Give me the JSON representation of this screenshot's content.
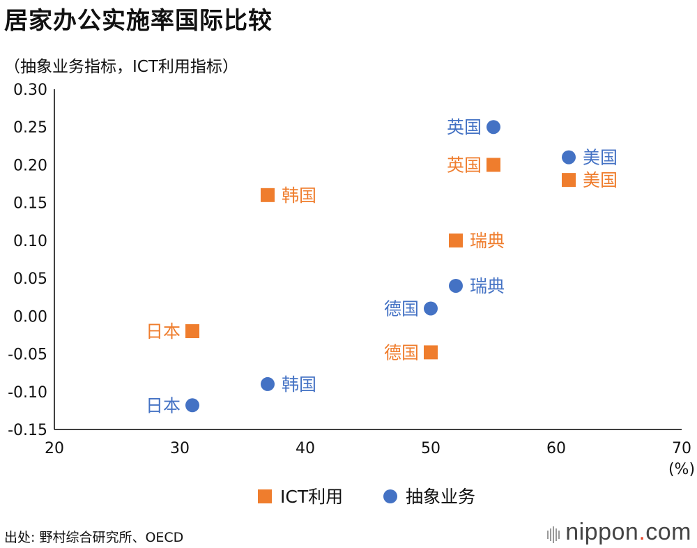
{
  "title": "居家办公实施率国际比较",
  "subtitle": "（抽象业务指标，ICT利用指标）",
  "source": "出处: 野村综合研究所、OECD",
  "logo": {
    "brand": "nippon",
    "dot": ".",
    "tld": "com"
  },
  "colors": {
    "ict": "#ef7d2d",
    "abstract": "#4472c4",
    "axis": "#000000"
  },
  "chart_data": {
    "type": "scatter",
    "xlim": [
      20,
      70
    ],
    "ylim": [
      -0.15,
      0.3
    ],
    "x_ticks": [
      "20",
      "30",
      "40",
      "50",
      "60",
      "70"
    ],
    "y_ticks": [
      "0.30",
      "0.25",
      "0.20",
      "0.15",
      "0.10",
      "0.05",
      "0.00",
      "-0.05",
      "-0.10",
      "-0.15"
    ],
    "x_unit": "(%)",
    "grid": false,
    "legend_position": "bottom",
    "series": [
      {
        "name": "ICT利用",
        "marker": "square",
        "color": "#ef7d2d",
        "points": [
          {
            "label": "日本",
            "x": 31,
            "y": -0.02,
            "label_side": "left"
          },
          {
            "label": "韩国",
            "x": 37,
            "y": 0.16,
            "label_side": "right"
          },
          {
            "label": "德国",
            "x": 50,
            "y": -0.048,
            "label_side": "left"
          },
          {
            "label": "瑞典",
            "x": 52,
            "y": 0.1,
            "label_side": "right"
          },
          {
            "label": "英国",
            "x": 55,
            "y": 0.2,
            "label_side": "left"
          },
          {
            "label": "美国",
            "x": 61,
            "y": 0.18,
            "label_side": "right"
          }
        ]
      },
      {
        "name": "抽象业务",
        "marker": "circle",
        "color": "#4472c4",
        "points": [
          {
            "label": "日本",
            "x": 31,
            "y": -0.118,
            "label_side": "left"
          },
          {
            "label": "韩国",
            "x": 37,
            "y": -0.09,
            "label_side": "right"
          },
          {
            "label": "德国",
            "x": 50,
            "y": 0.01,
            "label_side": "left"
          },
          {
            "label": "瑞典",
            "x": 52,
            "y": 0.04,
            "label_side": "right"
          },
          {
            "label": "英国",
            "x": 55,
            "y": 0.25,
            "label_side": "left"
          },
          {
            "label": "美国",
            "x": 61,
            "y": 0.21,
            "label_side": "right"
          }
        ]
      }
    ]
  }
}
